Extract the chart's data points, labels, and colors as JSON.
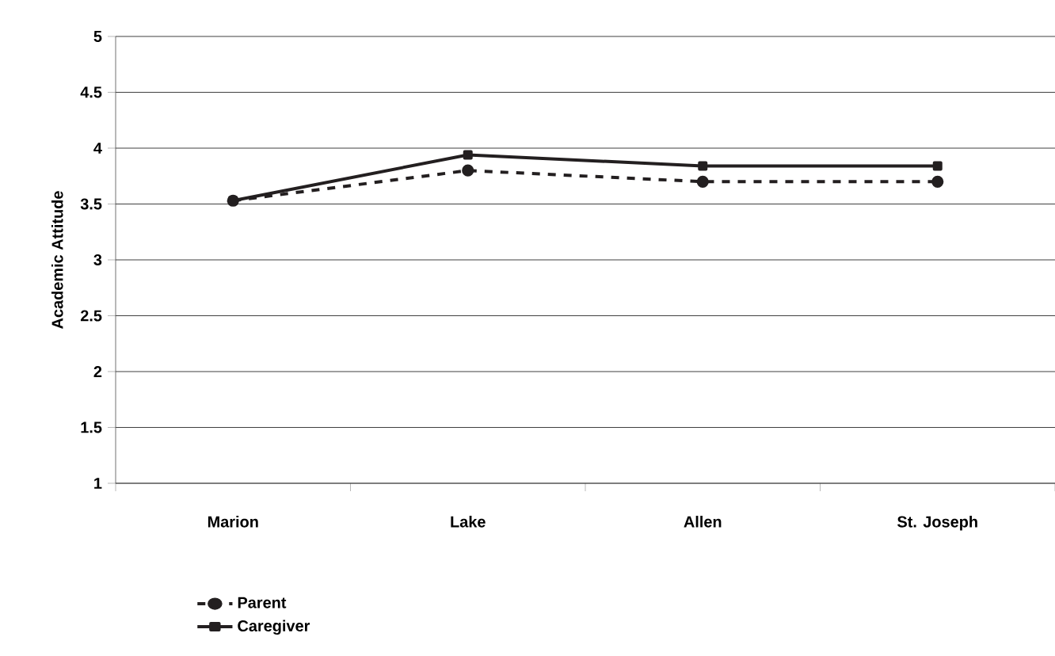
{
  "chart_data": {
    "type": "line",
    "ylabel": "Academic Attitude",
    "categories": [
      "Marion",
      "Lake",
      "Allen",
      "St. Joseph"
    ],
    "series": [
      {
        "name": "Parent",
        "color": "#231f20",
        "values": [
          3.53,
          3.8,
          3.7,
          3.7
        ],
        "marker": "circle",
        "line_style": "dashed"
      },
      {
        "name": "Caregiver",
        "color": "#231f20",
        "values": [
          3.53,
          3.94,
          3.84,
          3.84
        ],
        "marker": "square",
        "line_style": "solid"
      }
    ],
    "ylim": [
      1,
      5
    ],
    "yticks": [
      1,
      1.5,
      2,
      2.5,
      3,
      3.5,
      4,
      4.5,
      5
    ],
    "grid": "y",
    "legend": "bottom left"
  }
}
